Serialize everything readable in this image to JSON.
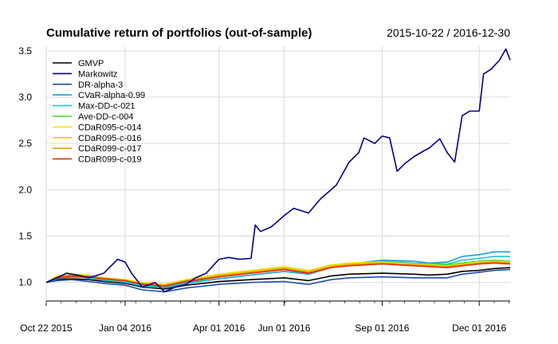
{
  "chart_data": {
    "type": "line",
    "title": "Cumulative return of portfolios (out-of-sample)",
    "date_range": "2015-10-22 / 2016-12-30",
    "xlabel": "",
    "ylabel": "",
    "x_range": [
      "2015-10-22",
      "2016-12-30"
    ],
    "ylim": [
      0.8,
      3.55
    ],
    "y_ticks": [
      1.0,
      1.5,
      2.0,
      2.5,
      3.0,
      3.5
    ],
    "y_tick_labels": [
      "1.0",
      "1.5",
      "2.0",
      "2.5",
      "3.0",
      "3.5"
    ],
    "x_ticks": [
      {
        "date": "2015-10-22",
        "label": "Oct 22 2015"
      },
      {
        "date": "2016-01-04",
        "label": "Jan 04 2016"
      },
      {
        "date": "2016-04-01",
        "label": "Apr 01 2016"
      },
      {
        "date": "2016-06-01",
        "label": "Jun 01 2016"
      },
      {
        "date": "2016-09-01",
        "label": "Sep 01 2016"
      },
      {
        "date": "2016-12-01",
        "label": "Dec 01 2016"
      }
    ],
    "grid": true,
    "legend_position": "top-left",
    "series": [
      {
        "name": "GMVP",
        "color": "#000000",
        "points": [
          [
            "2015-10-22",
            1.0
          ],
          [
            "2015-11-01",
            1.03
          ],
          [
            "2015-11-15",
            1.04
          ],
          [
            "2015-12-01",
            1.03
          ],
          [
            "2015-12-15",
            1.01
          ],
          [
            "2016-01-04",
            0.99
          ],
          [
            "2016-01-20",
            0.95
          ],
          [
            "2016-02-10",
            0.93
          ],
          [
            "2016-03-01",
            0.97
          ],
          [
            "2016-04-01",
            1.01
          ],
          [
            "2016-05-01",
            1.03
          ],
          [
            "2016-06-01",
            1.05
          ],
          [
            "2016-06-24",
            1.02
          ],
          [
            "2016-07-15",
            1.07
          ],
          [
            "2016-08-01",
            1.09
          ],
          [
            "2016-09-01",
            1.1
          ],
          [
            "2016-10-01",
            1.09
          ],
          [
            "2016-10-15",
            1.08
          ],
          [
            "2016-11-01",
            1.09
          ],
          [
            "2016-11-15",
            1.12
          ],
          [
            "2016-12-01",
            1.13
          ],
          [
            "2016-12-15",
            1.15
          ],
          [
            "2016-12-30",
            1.16
          ]
        ]
      },
      {
        "name": "Markowitz",
        "color": "#00008B",
        "points": [
          [
            "2015-10-22",
            1.0
          ],
          [
            "2015-11-01",
            1.05
          ],
          [
            "2015-11-10",
            1.1
          ],
          [
            "2015-11-20",
            1.08
          ],
          [
            "2015-12-01",
            1.05
          ],
          [
            "2015-12-15",
            1.1
          ],
          [
            "2015-12-28",
            1.25
          ],
          [
            "2016-01-04",
            1.22
          ],
          [
            "2016-01-10",
            1.1
          ],
          [
            "2016-01-20",
            0.95
          ],
          [
            "2016-02-01",
            1.0
          ],
          [
            "2016-02-10",
            0.9
          ],
          [
            "2016-02-20",
            0.95
          ],
          [
            "2016-03-01",
            0.98
          ],
          [
            "2016-03-10",
            1.05
          ],
          [
            "2016-03-20",
            1.1
          ],
          [
            "2016-04-01",
            1.25
          ],
          [
            "2016-04-10",
            1.27
          ],
          [
            "2016-04-20",
            1.25
          ],
          [
            "2016-05-01",
            1.26
          ],
          [
            "2016-05-05",
            1.62
          ],
          [
            "2016-05-10",
            1.55
          ],
          [
            "2016-05-20",
            1.6
          ],
          [
            "2016-06-01",
            1.72
          ],
          [
            "2016-06-10",
            1.8
          ],
          [
            "2016-06-24",
            1.75
          ],
          [
            "2016-07-05",
            1.9
          ],
          [
            "2016-07-20",
            2.05
          ],
          [
            "2016-08-01",
            2.3
          ],
          [
            "2016-08-10",
            2.4
          ],
          [
            "2016-08-15",
            2.56
          ],
          [
            "2016-08-25",
            2.5
          ],
          [
            "2016-09-01",
            2.58
          ],
          [
            "2016-09-08",
            2.56
          ],
          [
            "2016-09-15",
            2.2
          ],
          [
            "2016-09-22",
            2.28
          ],
          [
            "2016-10-01",
            2.36
          ],
          [
            "2016-10-10",
            2.42
          ],
          [
            "2016-10-15",
            2.45
          ],
          [
            "2016-10-20",
            2.5
          ],
          [
            "2016-10-25",
            2.55
          ],
          [
            "2016-11-01",
            2.4
          ],
          [
            "2016-11-08",
            2.3
          ],
          [
            "2016-11-15",
            2.8
          ],
          [
            "2016-11-22",
            2.85
          ],
          [
            "2016-12-01",
            2.85
          ],
          [
            "2016-12-05",
            3.25
          ],
          [
            "2016-12-12",
            3.3
          ],
          [
            "2016-12-20",
            3.4
          ],
          [
            "2016-12-26",
            3.52
          ],
          [
            "2016-12-30",
            3.4
          ]
        ]
      },
      {
        "name": "DR-alpha-3",
        "color": "#1F4EAD",
        "points": [
          [
            "2015-10-22",
            1.0
          ],
          [
            "2015-11-01",
            1.02
          ],
          [
            "2015-11-15",
            1.03
          ],
          [
            "2015-12-01",
            1.01
          ],
          [
            "2015-12-15",
            0.99
          ],
          [
            "2016-01-04",
            0.97
          ],
          [
            "2016-01-20",
            0.92
          ],
          [
            "2016-02-10",
            0.9
          ],
          [
            "2016-03-01",
            0.94
          ],
          [
            "2016-04-01",
            0.98
          ],
          [
            "2016-05-01",
            1.0
          ],
          [
            "2016-06-01",
            1.01
          ],
          [
            "2016-06-24",
            0.98
          ],
          [
            "2016-07-15",
            1.03
          ],
          [
            "2016-08-01",
            1.05
          ],
          [
            "2016-09-01",
            1.06
          ],
          [
            "2016-10-01",
            1.05
          ],
          [
            "2016-11-01",
            1.05
          ],
          [
            "2016-11-15",
            1.09
          ],
          [
            "2016-12-01",
            1.11
          ],
          [
            "2016-12-15",
            1.13
          ],
          [
            "2016-12-30",
            1.14
          ]
        ]
      },
      {
        "name": "CVaR-alpha-0.99",
        "color": "#1B9FD0",
        "points": [
          [
            "2015-10-22",
            1.0
          ],
          [
            "2015-11-01",
            1.04
          ],
          [
            "2015-11-15",
            1.06
          ],
          [
            "2015-12-01",
            1.05
          ],
          [
            "2015-12-15",
            1.02
          ],
          [
            "2016-01-04",
            1.0
          ],
          [
            "2016-01-20",
            0.96
          ],
          [
            "2016-02-10",
            0.94
          ],
          [
            "2016-03-01",
            0.99
          ],
          [
            "2016-04-01",
            1.04
          ],
          [
            "2016-05-01",
            1.08
          ],
          [
            "2016-06-01",
            1.12
          ],
          [
            "2016-06-24",
            1.09
          ],
          [
            "2016-07-15",
            1.16
          ],
          [
            "2016-08-01",
            1.2
          ],
          [
            "2016-09-01",
            1.24
          ],
          [
            "2016-10-01",
            1.23
          ],
          [
            "2016-10-15",
            1.21
          ],
          [
            "2016-11-01",
            1.22
          ],
          [
            "2016-11-15",
            1.28
          ],
          [
            "2016-12-01",
            1.3
          ],
          [
            "2016-12-15",
            1.33
          ],
          [
            "2016-12-30",
            1.33
          ]
        ]
      },
      {
        "name": "Max-DD-c-021",
        "color": "#20C8C8",
        "points": [
          [
            "2015-10-22",
            1.0
          ],
          [
            "2015-11-01",
            1.05
          ],
          [
            "2015-11-15",
            1.07
          ],
          [
            "2015-12-01",
            1.06
          ],
          [
            "2015-12-15",
            1.03
          ],
          [
            "2016-01-04",
            1.01
          ],
          [
            "2016-01-20",
            0.97
          ],
          [
            "2016-02-10",
            0.95
          ],
          [
            "2016-03-01",
            1.0
          ],
          [
            "2016-04-01",
            1.06
          ],
          [
            "2016-05-01",
            1.1
          ],
          [
            "2016-06-01",
            1.14
          ],
          [
            "2016-06-24",
            1.1
          ],
          [
            "2016-07-15",
            1.17
          ],
          [
            "2016-08-01",
            1.2
          ],
          [
            "2016-09-01",
            1.23
          ],
          [
            "2016-10-01",
            1.21
          ],
          [
            "2016-11-01",
            1.2
          ],
          [
            "2016-11-15",
            1.24
          ],
          [
            "2016-12-01",
            1.26
          ],
          [
            "2016-12-15",
            1.28
          ],
          [
            "2016-12-30",
            1.28
          ]
        ]
      },
      {
        "name": "Ave-DD-c-004",
        "color": "#3FD92E",
        "points": [
          [
            "2015-10-22",
            1.0
          ],
          [
            "2015-11-01",
            1.06
          ],
          [
            "2015-11-15",
            1.08
          ],
          [
            "2015-12-01",
            1.07
          ],
          [
            "2015-12-15",
            1.04
          ],
          [
            "2016-01-04",
            1.02
          ],
          [
            "2016-01-20",
            0.99
          ],
          [
            "2016-02-10",
            0.97
          ],
          [
            "2016-03-01",
            1.02
          ],
          [
            "2016-04-01",
            1.08
          ],
          [
            "2016-05-01",
            1.12
          ],
          [
            "2016-06-01",
            1.16
          ],
          [
            "2016-06-24",
            1.12
          ],
          [
            "2016-07-15",
            1.18
          ],
          [
            "2016-08-01",
            1.2
          ],
          [
            "2016-09-01",
            1.22
          ],
          [
            "2016-10-01",
            1.2
          ],
          [
            "2016-11-01",
            1.19
          ],
          [
            "2016-11-15",
            1.21
          ],
          [
            "2016-12-01",
            1.23
          ],
          [
            "2016-12-15",
            1.24
          ],
          [
            "2016-12-30",
            1.23
          ]
        ]
      },
      {
        "name": "CDaR095-c-014",
        "color": "#E6E600",
        "points": [
          [
            "2015-10-22",
            1.0
          ],
          [
            "2015-11-01",
            1.07
          ],
          [
            "2015-11-15",
            1.09
          ],
          [
            "2015-12-01",
            1.08
          ],
          [
            "2015-12-15",
            1.05
          ],
          [
            "2016-01-04",
            1.03
          ],
          [
            "2016-01-20",
            1.0
          ],
          [
            "2016-02-10",
            0.98
          ],
          [
            "2016-03-01",
            1.03
          ],
          [
            "2016-04-01",
            1.09
          ],
          [
            "2016-05-01",
            1.13
          ],
          [
            "2016-06-01",
            1.17
          ],
          [
            "2016-06-24",
            1.13
          ],
          [
            "2016-07-15",
            1.19
          ],
          [
            "2016-08-01",
            1.21
          ],
          [
            "2016-09-01",
            1.22
          ],
          [
            "2016-10-01",
            1.2
          ],
          [
            "2016-11-01",
            1.18
          ],
          [
            "2016-11-15",
            1.2
          ],
          [
            "2016-12-01",
            1.22
          ],
          [
            "2016-12-15",
            1.23
          ],
          [
            "2016-12-30",
            1.22
          ]
        ]
      },
      {
        "name": "CDaR095-c-016",
        "color": "#F5C800",
        "points": [
          [
            "2015-10-22",
            1.0
          ],
          [
            "2015-11-01",
            1.06
          ],
          [
            "2015-11-15",
            1.08
          ],
          [
            "2015-12-01",
            1.07
          ],
          [
            "2015-12-15",
            1.05
          ],
          [
            "2016-01-04",
            1.03
          ],
          [
            "2016-01-20",
            0.99
          ],
          [
            "2016-02-10",
            0.97
          ],
          [
            "2016-03-01",
            1.02
          ],
          [
            "2016-04-01",
            1.08
          ],
          [
            "2016-05-01",
            1.12
          ],
          [
            "2016-06-01",
            1.16
          ],
          [
            "2016-06-24",
            1.12
          ],
          [
            "2016-07-15",
            1.18
          ],
          [
            "2016-08-01",
            1.2
          ],
          [
            "2016-09-01",
            1.21
          ],
          [
            "2016-10-01",
            1.19
          ],
          [
            "2016-11-01",
            1.17
          ],
          [
            "2016-11-15",
            1.19
          ],
          [
            "2016-12-01",
            1.21
          ],
          [
            "2016-12-15",
            1.22
          ],
          [
            "2016-12-30",
            1.21
          ]
        ]
      },
      {
        "name": "CDaR099-c-017",
        "color": "#E8A000",
        "points": [
          [
            "2015-10-22",
            1.0
          ],
          [
            "2015-11-01",
            1.06
          ],
          [
            "2015-11-15",
            1.08
          ],
          [
            "2015-12-01",
            1.07
          ],
          [
            "2015-12-15",
            1.04
          ],
          [
            "2016-01-04",
            1.02
          ],
          [
            "2016-01-20",
            0.99
          ],
          [
            "2016-02-10",
            0.97
          ],
          [
            "2016-03-01",
            1.02
          ],
          [
            "2016-04-01",
            1.07
          ],
          [
            "2016-05-01",
            1.11
          ],
          [
            "2016-06-01",
            1.15
          ],
          [
            "2016-06-24",
            1.11
          ],
          [
            "2016-07-15",
            1.17
          ],
          [
            "2016-08-01",
            1.19
          ],
          [
            "2016-09-01",
            1.21
          ],
          [
            "2016-10-01",
            1.19
          ],
          [
            "2016-11-01",
            1.17
          ],
          [
            "2016-11-15",
            1.19
          ],
          [
            "2016-12-01",
            1.21
          ],
          [
            "2016-12-15",
            1.22
          ],
          [
            "2016-12-30",
            1.21
          ]
        ]
      },
      {
        "name": "CDaR099-c-019",
        "color": "#E03000",
        "points": [
          [
            "2015-10-22",
            1.0
          ],
          [
            "2015-11-01",
            1.05
          ],
          [
            "2015-11-15",
            1.07
          ],
          [
            "2015-12-01",
            1.06
          ],
          [
            "2015-12-15",
            1.04
          ],
          [
            "2016-01-04",
            1.02
          ],
          [
            "2016-01-20",
            0.98
          ],
          [
            "2016-02-10",
            0.96
          ],
          [
            "2016-03-01",
            1.01
          ],
          [
            "2016-04-01",
            1.06
          ],
          [
            "2016-05-01",
            1.1
          ],
          [
            "2016-06-01",
            1.14
          ],
          [
            "2016-06-24",
            1.1
          ],
          [
            "2016-07-15",
            1.16
          ],
          [
            "2016-08-01",
            1.18
          ],
          [
            "2016-09-01",
            1.2
          ],
          [
            "2016-10-01",
            1.18
          ],
          [
            "2016-11-01",
            1.16
          ],
          [
            "2016-11-15",
            1.18
          ],
          [
            "2016-12-01",
            1.2
          ],
          [
            "2016-12-15",
            1.21
          ],
          [
            "2016-12-30",
            1.2
          ]
        ]
      }
    ]
  }
}
